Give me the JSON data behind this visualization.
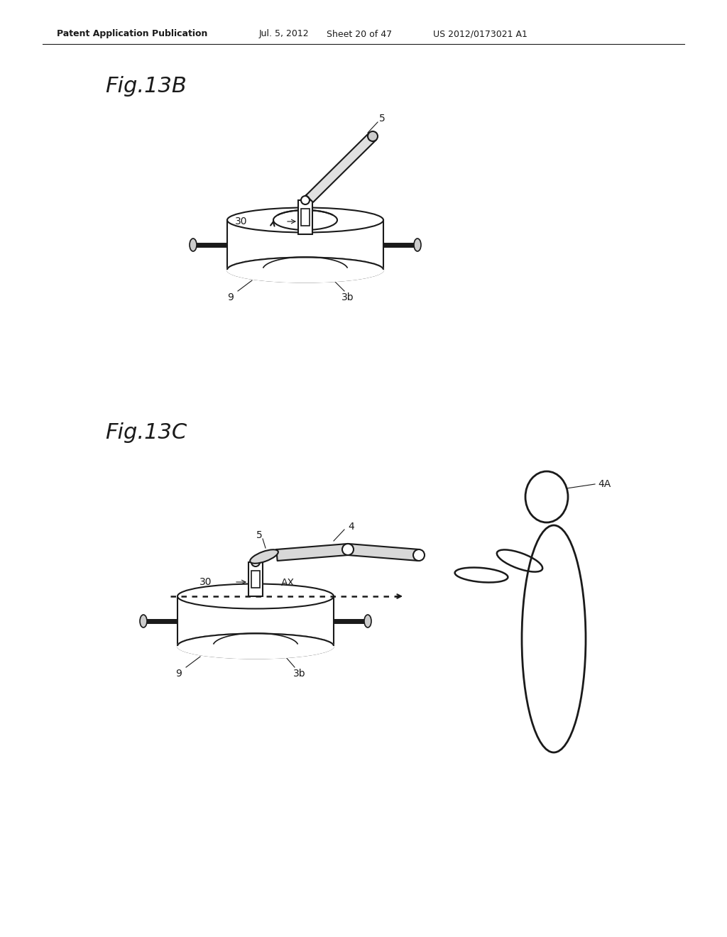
{
  "bg_color": "#ffffff",
  "header_text": "Patent Application Publication",
  "header_date": "Jul. 5, 2012",
  "header_sheet": "Sheet 20 of 47",
  "header_patent": "US 2012/0173021 A1",
  "fig13b_label": "Fig.13B",
  "fig13c_label": "Fig.13C",
  "line_color": "#1a1a1a",
  "line_width": 1.5
}
